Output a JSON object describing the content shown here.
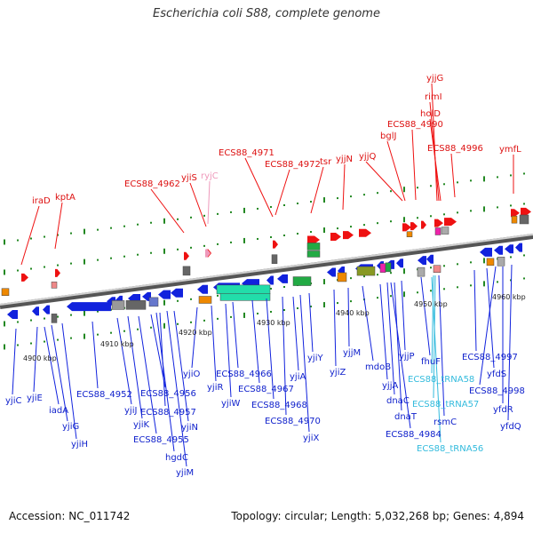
{
  "title": "Escherichia coli S88, complete genome",
  "footer": {
    "accession": "Accession: NC_011742",
    "summary": "Topology: circular; Length: 5,032,268 bp; Genes: 4,894"
  },
  "colors": {
    "forward": "#ee1111",
    "reverse": "#1122dd",
    "trna": "#33bbdd",
    "pseudo": "#ee99bb",
    "axis": "#888888",
    "dots": "#228822"
  },
  "ticks": [
    "4900 kbp",
    "4910 kbp",
    "4920 kbp",
    "4930 kbp",
    "4940 kbp",
    "4950 kbp",
    "4960 kbp"
  ],
  "top_labels": [
    "iraD",
    "kptA",
    "ECS88_4962",
    "yjiS",
    "ryjC",
    "ECS88_4971",
    "ECS88_4972",
    "tsr",
    "yjjN",
    "yjjQ",
    "bglJ",
    "ECS88_4990",
    "yjjG",
    "rimI",
    "holD",
    "ECS88_4996",
    "ymfL"
  ],
  "bottom_labels": [
    "yjiC",
    "yjiE",
    "iadA",
    "yjiG",
    "yjiH",
    "ECS88_4952",
    "yjiJ",
    "yjiK",
    "ECS88_4955",
    "ECS88_4956",
    "ECS88_4957",
    "hgdC",
    "yjiM",
    "yjiN",
    "yjiO",
    "yjiR",
    "yjiW",
    "ECS88_4966",
    "ECS88_4967",
    "ECS88_4968",
    "ECS88_4970",
    "yjiA",
    "yjiX",
    "yjiY",
    "yjiZ",
    "yjjM",
    "mdoB",
    "yjjA",
    "dnaC",
    "dnaT",
    "yjjP",
    "ECS88_4984",
    "fhuF",
    "ECS88_tRNA58",
    "ECS88_tRNA57",
    "rsmC",
    "ECS88_tRNA56",
    "ECS88_4997",
    "yfdS",
    "ECS88_4998",
    "yfdR",
    "yfdQ"
  ]
}
